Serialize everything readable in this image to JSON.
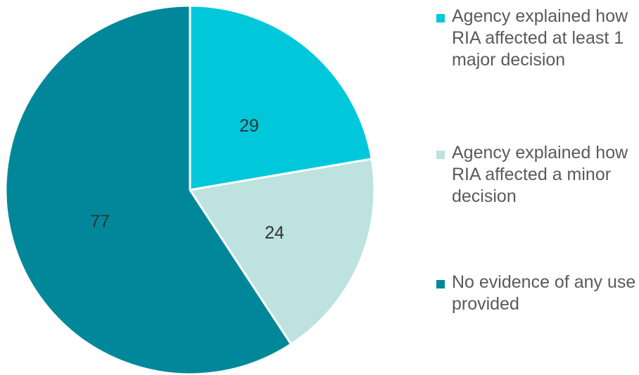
{
  "chart_data": {
    "type": "pie",
    "categories": [
      "Agency explained how RIA affected at least 1 major decision",
      "Agency explained how RIA affected a minor decision",
      "No evidence of any use provided"
    ],
    "values": [
      29,
      24,
      77
    ],
    "colors": [
      "#00c8da",
      "#bde2df",
      "#00889a"
    ],
    "data_labels": [
      "29",
      "24",
      "77"
    ],
    "legend_position": "right",
    "start_angle": "12 o'clock, clockwise"
  }
}
